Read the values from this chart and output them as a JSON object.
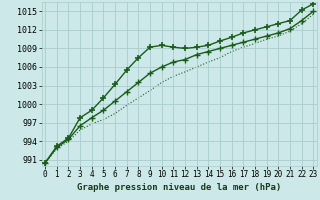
{
  "title": "Graphe pression niveau de la mer (hPa)",
  "x_labels": [
    "0",
    "1",
    "2",
    "3",
    "4",
    "5",
    "6",
    "7",
    "8",
    "9",
    "10",
    "11",
    "12",
    "13",
    "14",
    "15",
    "16",
    "17",
    "18",
    "19",
    "20",
    "21",
    "22",
    "23"
  ],
  "ylim": [
    990.0,
    1016.5
  ],
  "yticks": [
    991,
    994,
    997,
    1000,
    1003,
    1006,
    1009,
    1012,
    1015
  ],
  "background_color": "#cce8e8",
  "grid_color": "#aacccc",
  "line_color": "#1a5c1a",
  "series_upper": [
    990.5,
    993.2,
    994.5,
    997.8,
    999.0,
    1001.0,
    1003.2,
    1005.5,
    1007.5,
    1009.2,
    1009.5,
    1009.2,
    1009.0,
    1009.2,
    1009.5,
    1010.2,
    1010.8,
    1011.5,
    1012.0,
    1012.5,
    1013.0,
    1013.5,
    1015.2,
    1016.2
  ],
  "series_mid": [
    990.5,
    993.0,
    994.3,
    996.5,
    997.8,
    999.0,
    1000.5,
    1002.0,
    1003.5,
    1005.0,
    1006.0,
    1006.8,
    1007.2,
    1008.0,
    1008.5,
    1009.0,
    1009.5,
    1010.0,
    1010.5,
    1011.0,
    1011.5,
    1012.2,
    1013.5,
    1015.0
  ],
  "series_lower": [
    990.5,
    992.8,
    994.0,
    995.8,
    996.8,
    997.5,
    998.5,
    999.8,
    1001.0,
    1002.2,
    1003.5,
    1004.5,
    1005.2,
    1006.0,
    1006.8,
    1007.5,
    1008.5,
    1009.2,
    1009.8,
    1010.5,
    1011.0,
    1011.8,
    1013.0,
    1014.5
  ]
}
